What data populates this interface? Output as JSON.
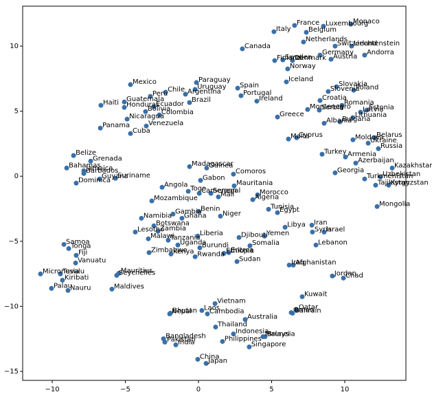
{
  "chart_data": {
    "type": "scatter",
    "color": "#3a70a8",
    "labels": [
      "Monaco",
      "France",
      "Luxembourg",
      "Italy",
      "Belgium",
      "Netherlands",
      "Switzerland",
      "Liechtenstein",
      "Canada",
      "Germany",
      "Andorra",
      "Finland",
      "Sweden",
      "Denmark",
      "Austria",
      "Norway",
      "Mexico",
      "Paraguay",
      "Iceland",
      "Uruguay",
      "Spain",
      "Slovakia",
      "Poland",
      "Chile",
      "Portugal",
      "Slovenia",
      "Peru",
      "Argentina",
      "Croatia",
      "Haiti",
      "Guatemala",
      "Ireland",
      "Brazil",
      "Romania",
      "Honduras",
      "Ecuador",
      "Montenegro",
      "Serbia",
      "Estonia",
      "Bolivia",
      "Latvia",
      "Colombia",
      "Nicaragua",
      "Greece",
      "Lithuania",
      "Albania",
      "Bulgaria",
      "Panama",
      "Venezuela",
      "Cuba",
      "Malta",
      "Cyprus",
      "Moldova",
      "Belarus",
      "Ukraine",
      "Russia",
      "Belize",
      "Grenada",
      "Turkey",
      "Armenia",
      "Azerbaijan",
      "Madagascar",
      "Guinea",
      "Bahamas",
      "Barbados",
      "Jamaica",
      "Kazakhstan",
      "Comoros",
      "Georgia",
      "Guyana",
      "Suriname",
      "Uzbekistan",
      "Gabon",
      "Turkmenistan",
      "Dominica",
      "Tajikistan",
      "Kyrgyzstan",
      "Angola",
      "Mauritania",
      "Togo",
      "Cameroon",
      "Senegal",
      "Mali",
      "Morocco",
      "Algeria",
      "Mozambique",
      "Mongolia",
      "Tunisia",
      "Benin",
      "Gambia",
      "Egypt",
      "Niger",
      "Ghana",
      "Namibia",
      "Iran",
      "Libya",
      "Botswana",
      "Syria",
      "Israel",
      "Zambia",
      "Lesotho",
      "Djibouti",
      "Yemen",
      "Liberia",
      "Malawi",
      "Tanzania",
      "Somalia",
      "Lebanon",
      "Uganda",
      "Burundi",
      "Samoa",
      "Tonga",
      "Zimbabwe",
      "Kenya",
      "Ethiopia",
      "Eritrea",
      "Fiji",
      "Rwanda",
      "Sudan",
      "Vanuatu",
      "Iraq",
      "Afghanistan",
      "Micronesia",
      "Tuvalu",
      "Mauritius",
      "Seychelles",
      "Jordan",
      "Chad",
      "Kiribati",
      "Palau",
      "Nauru",
      "Maldives",
      "Kuwait",
      "Vietnam",
      "Laos",
      "Qatar",
      "Oman",
      "Bahrain",
      "Nepal",
      "Bhutan",
      "Cambodia",
      "Australia",
      "Thailand",
      "Indonesia",
      "Brunei",
      "Malaysia",
      "Bangladesh",
      "Philippines",
      "Pakistan",
      "India",
      "Singapore",
      "China",
      "Japan"
    ],
    "x": [
      10.42,
      6.57,
      8.54,
      5.16,
      7.37,
      7.18,
      9.34,
      10.47,
      3.0,
      8.31,
      11.36,
      5.21,
      5.77,
      6.43,
      9.06,
      6.1,
      -4.65,
      -0.14,
      6.01,
      -0.23,
      2.68,
      9.44,
      10.61,
      -2.25,
      2.91,
      8.87,
      -3.29,
      -0.89,
      8.31,
      -6.67,
      -5.07,
      3.99,
      -0.61,
      9.81,
      -5.07,
      -3.05,
      7.46,
      8.26,
      11.5,
      -3.62,
      11.08,
      -2.68,
      -4.88,
      5.4,
      10.56,
      8.59,
      9.67,
      -6.71,
      -3.57,
      -4.65,
      6.15,
      6.71,
      10.56,
      12.02,
      11.6,
      12.3,
      -8.54,
      -7.37,
      8.45,
      10.05,
      10.75,
      -0.61,
      0.56,
      -9.01,
      -7.84,
      -7.84,
      13.24,
      2.39,
      9.34,
      -6.76,
      -5.68,
      12.44,
      0.14,
      11.36,
      -8.36,
      12.11,
      13.0,
      -2.49,
      2.44,
      -0.7,
      0.05,
      0.85,
      1.36,
      4.04,
      3.71,
      -3.19,
      12.21,
      4.79,
      0.0,
      -1.74,
      5.4,
      1.5,
      -1.13,
      -3.9,
      7.75,
      5.92,
      -3.05,
      7.79,
      8.59,
      -2.77,
      -4.32,
      2.77,
      4.51,
      -0.05,
      -3.43,
      -2.07,
      3.52,
      8.03,
      -1.41,
      0.09,
      -9.2,
      -8.87,
      -3.38,
      -1.88,
      1.74,
      2.07,
      -8.36,
      -0.23,
      2.63,
      -8.4,
      6.2,
      6.48,
      -10.8,
      -9.44,
      -5.45,
      -5.59,
      9.15,
      9.91,
      -9.3,
      -10.05,
      -8.92,
      -5.92,
      7.09,
      1.13,
      0.23,
      6.71,
      6.34,
      6.43,
      -1.97,
      -1.92,
      0.61,
      3.19,
      1.17,
      2.39,
      4.55,
      4.41,
      -2.39,
      1.64,
      -2.3,
      -1.55,
      3.47,
      -0.05,
      0.52
    ],
    "values": [
      11.69,
      11.59,
      11.53,
      11.11,
      11.06,
      10.32,
      10.0,
      10.0,
      9.79,
      9.31,
      9.31,
      8.89,
      8.94,
      8.89,
      8.99,
      8.25,
      7.04,
      7.2,
      7.25,
      6.67,
      6.77,
      6.88,
      6.61,
      6.46,
      6.19,
      6.51,
      6.14,
      6.3,
      5.82,
      5.45,
      5.71,
      5.77,
      5.66,
      5.45,
      5.29,
      5.34,
      5.13,
      5.08,
      5.08,
      4.97,
      4.92,
      4.71,
      4.39,
      4.55,
      4.5,
      4.07,
      4.18,
      3.7,
      3.86,
      3.28,
      2.86,
      2.96,
      2.8,
      2.96,
      2.54,
      2.12,
      1.59,
      1.16,
      1.69,
      1.48,
      1.01,
      0.74,
      0.63,
      0.63,
      0.21,
      0.42,
      0.63,
      0.16,
      0.26,
      -0.21,
      -0.16,
      -0.05,
      -0.32,
      -0.21,
      -0.53,
      -0.69,
      -0.69,
      -0.85,
      -0.74,
      -1.16,
      -1.32,
      -1.32,
      -1.59,
      -1.43,
      -1.8,
      -1.9,
      -2.33,
      -2.54,
      -2.7,
      -2.91,
      -2.8,
      -3.07,
      -3.23,
      -3.23,
      -3.76,
      -3.92,
      -3.81,
      -4.29,
      -4.29,
      -4.23,
      -4.29,
      -4.71,
      -4.6,
      -4.6,
      -4.81,
      -4.92,
      -5.34,
      -5.29,
      -5.29,
      -5.5,
      -5.24,
      -5.56,
      -5.87,
      -5.98,
      -5.93,
      -5.87,
      -6.08,
      -6.19,
      -6.56,
      -6.67,
      -6.83,
      -6.83,
      -7.51,
      -7.51,
      -7.46,
      -7.62,
      -7.67,
      -7.83,
      -7.99,
      -8.62,
      -8.78,
      -8.68,
      -9.26,
      -9.79,
      -10.32,
      -10.26,
      -10.48,
      -10.53,
      -10.58,
      -10.53,
      -10.58,
      -11.01,
      -11.59,
      -12.12,
      -12.33,
      -12.33,
      -12.49,
      -12.7,
      -12.75,
      -12.96,
      -13.12,
      -14.07,
      -14.39
    ],
    "xlim": [
      -12.02,
      14.18
    ],
    "ylim": [
      -15.69,
      13.07
    ],
    "xticks": [
      {
        "value": -10,
        "label": "−10"
      },
      {
        "value": -5,
        "label": "−5"
      },
      0,
      5,
      10
    ],
    "yticks": [
      {
        "value": -15,
        "label": "−15"
      },
      {
        "value": -10,
        "label": "−10"
      },
      {
        "value": -5,
        "label": "−5"
      },
      0,
      5,
      10
    ]
  }
}
